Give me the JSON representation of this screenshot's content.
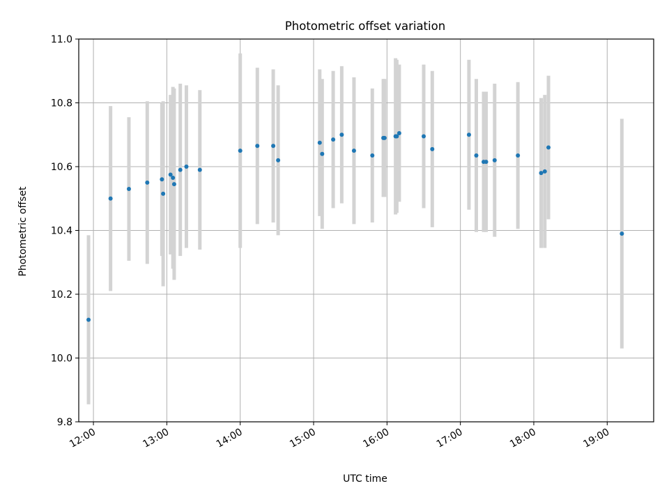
{
  "chart_data": {
    "type": "scatter",
    "title": "Photometric offset variation",
    "xlabel": "UTC time",
    "ylabel": "Photometric offset",
    "xlim": [
      "11:48",
      "19:38"
    ],
    "ylim": [
      9.8,
      11.0
    ],
    "x_ticks": [
      "12:00",
      "13:00",
      "14:00",
      "15:00",
      "16:00",
      "17:00",
      "18:00",
      "19:00"
    ],
    "y_ticks": [
      "9.8",
      "10.0",
      "10.2",
      "10.4",
      "10.6",
      "10.8",
      "11.0"
    ],
    "grid": true,
    "colors": {
      "point": "#1f77b4",
      "errorbar": "#d3d3d3",
      "grid": "#b0b0b0"
    },
    "series": [
      {
        "points": [
          {
            "x": "11:56",
            "y": 10.12,
            "err": 0.265
          },
          {
            "x": "12:14",
            "y": 10.5,
            "err": 0.29
          },
          {
            "x": "12:29",
            "y": 10.53,
            "err": 0.225
          },
          {
            "x": "12:44",
            "y": 10.55,
            "err": 0.255
          },
          {
            "x": "12:56",
            "y": 10.56,
            "err": 0.24
          },
          {
            "x": "12:57",
            "y": 10.515,
            "err": 0.29
          },
          {
            "x": "13:03",
            "y": 10.575,
            "err": 0.25
          },
          {
            "x": "13:05",
            "y": 10.565,
            "err": 0.285
          },
          {
            "x": "13:06",
            "y": 10.545,
            "err": 0.3
          },
          {
            "x": "13:11",
            "y": 10.59,
            "err": 0.27
          },
          {
            "x": "13:16",
            "y": 10.6,
            "err": 0.255
          },
          {
            "x": "13:27",
            "y": 10.59,
            "err": 0.25
          },
          {
            "x": "14:00",
            "y": 10.65,
            "err": 0.305
          },
          {
            "x": "14:14",
            "y": 10.665,
            "err": 0.245
          },
          {
            "x": "14:27",
            "y": 10.665,
            "err": 0.24
          },
          {
            "x": "14:31",
            "y": 10.62,
            "err": 0.235
          },
          {
            "x": "15:05",
            "y": 10.675,
            "err": 0.23
          },
          {
            "x": "15:07",
            "y": 10.64,
            "err": 0.235
          },
          {
            "x": "15:16",
            "y": 10.685,
            "err": 0.215
          },
          {
            "x": "15:23",
            "y": 10.7,
            "err": 0.215
          },
          {
            "x": "15:33",
            "y": 10.65,
            "err": 0.23
          },
          {
            "x": "15:48",
            "y": 10.635,
            "err": 0.21
          },
          {
            "x": "15:57",
            "y": 10.69,
            "err": 0.185
          },
          {
            "x": "15:58",
            "y": 10.69,
            "err": 0.185
          },
          {
            "x": "16:07",
            "y": 10.695,
            "err": 0.245
          },
          {
            "x": "16:08",
            "y": 10.695,
            "err": 0.24
          },
          {
            "x": "16:10",
            "y": 10.705,
            "err": 0.215
          },
          {
            "x": "16:30",
            "y": 10.695,
            "err": 0.225
          },
          {
            "x": "16:37",
            "y": 10.655,
            "err": 0.245
          },
          {
            "x": "17:07",
            "y": 10.7,
            "err": 0.235
          },
          {
            "x": "17:13",
            "y": 10.635,
            "err": 0.24
          },
          {
            "x": "17:19",
            "y": 10.615,
            "err": 0.22
          },
          {
            "x": "17:21",
            "y": 10.615,
            "err": 0.22
          },
          {
            "x": "17:28",
            "y": 10.62,
            "err": 0.24
          },
          {
            "x": "17:47",
            "y": 10.635,
            "err": 0.23
          },
          {
            "x": "18:06",
            "y": 10.58,
            "err": 0.235
          },
          {
            "x": "18:09",
            "y": 10.585,
            "err": 0.24
          },
          {
            "x": "18:12",
            "y": 10.66,
            "err": 0.225
          },
          {
            "x": "19:12",
            "y": 10.39,
            "err": 0.36
          }
        ]
      }
    ]
  }
}
